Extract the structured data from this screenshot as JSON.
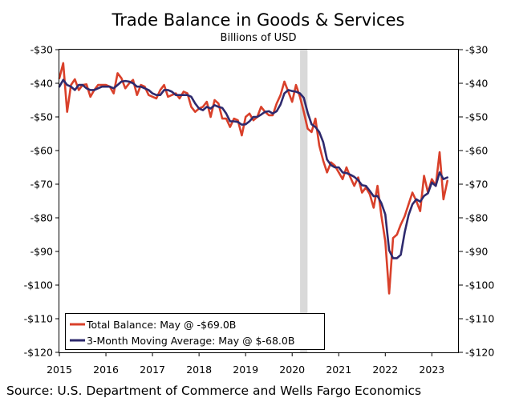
{
  "chart_data": {
    "type": "line",
    "title": "Trade Balance in Goods & Services",
    "subtitle": "Billions of USD",
    "source": "Source: U.S. Department of Commerce and Wells Fargo Economics",
    "x_tick_labels": [
      "2015",
      "2016",
      "2017",
      "2018",
      "2019",
      "2020",
      "2021",
      "2022",
      "2023"
    ],
    "x_range": [
      2015,
      2023.58
    ],
    "ylim": [
      -120,
      -30
    ],
    "y_ticks": [
      -30,
      -40,
      -50,
      -60,
      -70,
      -80,
      -90,
      -100,
      -110,
      -120
    ],
    "y_tick_labels": [
      "-$30",
      "-$40",
      "-$50",
      "-$60",
      "-$70",
      "-$80",
      "-$90",
      "-$100",
      "-$110",
      "-$120"
    ],
    "recession_band": [
      2020.17,
      2020.33
    ],
    "legend_position": "bottom-left",
    "series": [
      {
        "name": "Total Balance: May @ -$69.0B",
        "color": "#d9402a",
        "x": [
          2015,
          2015.083,
          2015.167,
          2015.25,
          2015.333,
          2015.417,
          2015.5,
          2015.583,
          2015.667,
          2015.75,
          2015.833,
          2015.917,
          2016,
          2016.083,
          2016.167,
          2016.25,
          2016.333,
          2016.417,
          2016.5,
          2016.583,
          2016.667,
          2016.75,
          2016.833,
          2016.917,
          2017,
          2017.083,
          2017.167,
          2017.25,
          2017.333,
          2017.417,
          2017.5,
          2017.583,
          2017.667,
          2017.75,
          2017.833,
          2017.917,
          2018,
          2018.083,
          2018.167,
          2018.25,
          2018.333,
          2018.417,
          2018.5,
          2018.583,
          2018.667,
          2018.75,
          2018.833,
          2018.917,
          2019,
          2019.083,
          2019.167,
          2019.25,
          2019.333,
          2019.417,
          2019.5,
          2019.583,
          2019.667,
          2019.75,
          2019.833,
          2019.917,
          2020,
          2020.083,
          2020.167,
          2020.25,
          2020.333,
          2020.417,
          2020.5,
          2020.583,
          2020.667,
          2020.75,
          2020.833,
          2020.917,
          2021,
          2021.083,
          2021.167,
          2021.25,
          2021.333,
          2021.417,
          2021.5,
          2021.583,
          2021.667,
          2021.75,
          2021.833,
          2021.917,
          2022,
          2022.083,
          2022.167,
          2022.25,
          2022.333,
          2022.417,
          2022.5,
          2022.583,
          2022.667,
          2022.75,
          2022.833,
          2022.917,
          2023,
          2023.083,
          2023.167,
          2023.25,
          2023.333
        ],
        "values": [
          -38.5,
          -34,
          -48.5,
          -40.5,
          -38.8,
          -42,
          -40.5,
          -40.3,
          -44,
          -42,
          -40.5,
          -40.5,
          -40.5,
          -41,
          -43,
          -37,
          -38.5,
          -41.5,
          -40,
          -39,
          -43.5,
          -40.5,
          -41,
          -43.5,
          -44,
          -44.5,
          -42,
          -40.5,
          -44,
          -43.5,
          -43,
          -44.5,
          -42.5,
          -43,
          -47,
          -48.5,
          -47.5,
          -47,
          -45.5,
          -50,
          -45,
          -46,
          -50.5,
          -50.5,
          -53,
          -50.5,
          -51,
          -55.5,
          -50,
          -49,
          -51,
          -50,
          -47,
          -48.5,
          -49.5,
          -49.5,
          -46,
          -43.5,
          -39.5,
          -42.5,
          -45.5,
          -40.5,
          -44,
          -48.5,
          -53.5,
          -54.5,
          -50.5,
          -58.5,
          -63,
          -66.5,
          -63.5,
          -64.5,
          -66.5,
          -68.5,
          -65,
          -68,
          -70.5,
          -68,
          -72.5,
          -71,
          -73,
          -77,
          -70.5,
          -79.5,
          -87,
          -102.5,
          -86,
          -85,
          -82,
          -79.5,
          -76,
          -72.5,
          -75,
          -78,
          -67.5,
          -72.5,
          -68.5,
          -70.5,
          -60.5,
          -74.5,
          -69
        ]
      },
      {
        "name": "3-Month Moving Average: May @ $-68.0B",
        "color": "#2e2a6e",
        "x": [
          2015,
          2015.083,
          2015.167,
          2015.25,
          2015.333,
          2015.417,
          2015.5,
          2015.583,
          2015.667,
          2015.75,
          2015.833,
          2015.917,
          2016,
          2016.083,
          2016.167,
          2016.25,
          2016.333,
          2016.417,
          2016.5,
          2016.583,
          2016.667,
          2016.75,
          2016.833,
          2016.917,
          2017,
          2017.083,
          2017.167,
          2017.25,
          2017.333,
          2017.417,
          2017.5,
          2017.583,
          2017.667,
          2017.75,
          2017.833,
          2017.917,
          2018,
          2018.083,
          2018.167,
          2018.25,
          2018.333,
          2018.417,
          2018.5,
          2018.583,
          2018.667,
          2018.75,
          2018.833,
          2018.917,
          2019,
          2019.083,
          2019.167,
          2019.25,
          2019.333,
          2019.417,
          2019.5,
          2019.583,
          2019.667,
          2019.75,
          2019.833,
          2019.917,
          2020,
          2020.083,
          2020.167,
          2020.25,
          2020.333,
          2020.417,
          2020.5,
          2020.583,
          2020.667,
          2020.75,
          2020.833,
          2020.917,
          2021,
          2021.083,
          2021.167,
          2021.25,
          2021.333,
          2021.417,
          2021.5,
          2021.583,
          2021.667,
          2021.75,
          2021.833,
          2021.917,
          2022,
          2022.083,
          2022.167,
          2022.25,
          2022.333,
          2022.417,
          2022.5,
          2022.583,
          2022.667,
          2022.75,
          2022.833,
          2022.917,
          2023,
          2023.083,
          2023.167,
          2023.25,
          2023.333
        ],
        "values": [
          -41,
          -39,
          -40.5,
          -41,
          -42,
          -40.5,
          -40.5,
          -41.5,
          -42,
          -42,
          -41.5,
          -41,
          -41,
          -41,
          -41.5,
          -40.5,
          -39.5,
          -39.3,
          -39.5,
          -40,
          -41,
          -41,
          -41.5,
          -42,
          -43,
          -43.5,
          -43.5,
          -42,
          -42,
          -42.5,
          -43.5,
          -43.5,
          -43.5,
          -43.5,
          -44,
          -46,
          -47.5,
          -48,
          -47,
          -47.5,
          -46.5,
          -47,
          -47.3,
          -49,
          -51.3,
          -51.3,
          -51.5,
          -52.3,
          -52.2,
          -51.3,
          -50,
          -50,
          -49.3,
          -48.5,
          -48.3,
          -49,
          -48.3,
          -46.3,
          -43,
          -42,
          -42.3,
          -42.5,
          -43,
          -44.3,
          -48.7,
          -52.2,
          -53,
          -54.5,
          -57.5,
          -62.7,
          -64.3,
          -65,
          -65,
          -66.5,
          -66.7,
          -67.2,
          -67.8,
          -68.8,
          -70.3,
          -70.5,
          -72,
          -73.6,
          -73.5,
          -75.7,
          -79,
          -89.7,
          -92,
          -92,
          -91,
          -84.3,
          -79.2,
          -76,
          -74.5,
          -75.2,
          -73.5,
          -72.7,
          -69.5,
          -70.5,
          -66.5,
          -68.5,
          -68
        ]
      }
    ]
  }
}
